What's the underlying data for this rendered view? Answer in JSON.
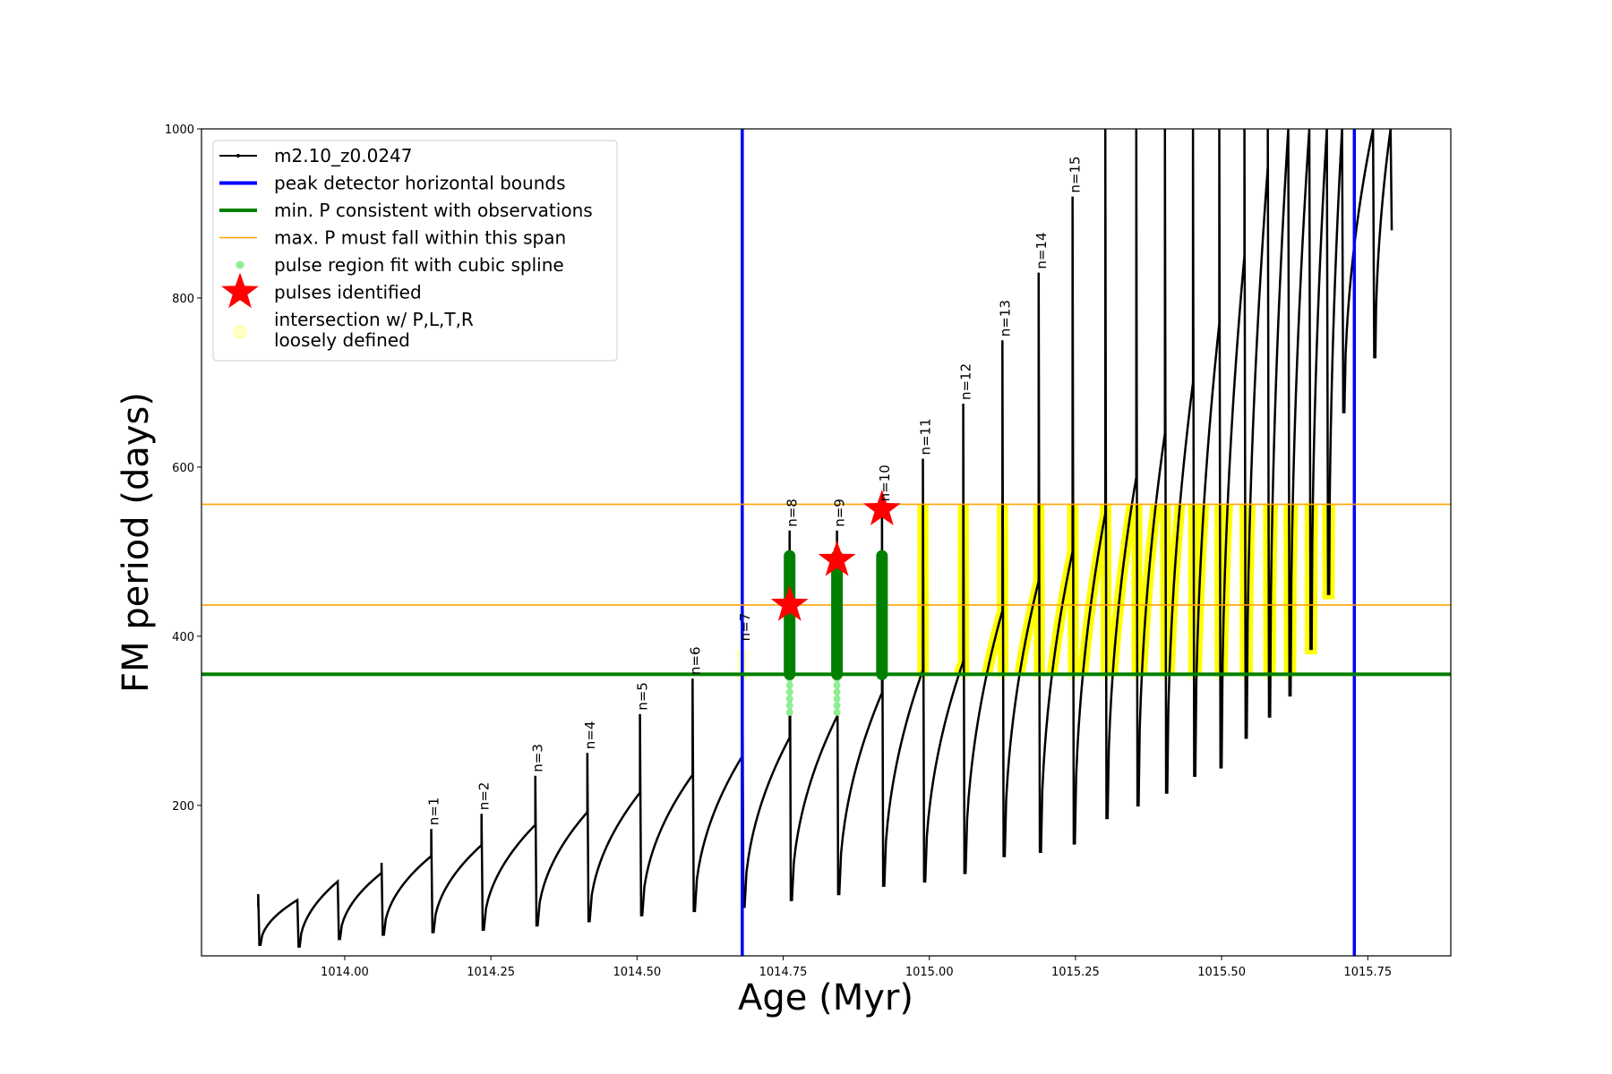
{
  "chart_data": {
    "type": "line",
    "xlabel": "Age (Myr)",
    "ylabel": "FM period (days)",
    "xlim": [
      1013.755,
      1015.892
    ],
    "ylim": [
      22,
      1000
    ],
    "xticks": [
      "1014.00",
      "1014.25",
      "1014.50",
      "1014.75",
      "1015.00",
      "1015.25",
      "1015.50",
      "1015.75"
    ],
    "yticks": [
      "200",
      "400",
      "600",
      "800",
      "1000"
    ],
    "legend_placement": "top-left",
    "legend": [
      {
        "label": "m2.10_z0.0247",
        "kind": "line-dot",
        "color": "#000000"
      },
      {
        "label": "peak detector horizontal bounds",
        "kind": "line",
        "color": "#0000ff"
      },
      {
        "label": "min. P consistent with observations",
        "kind": "line",
        "color": "#008000"
      },
      {
        "label": "max. P must fall within this span",
        "kind": "line",
        "color": "#ffa500"
      },
      {
        "label": "pulse region fit with cubic spline",
        "kind": "dot",
        "color": "#90ee90"
      },
      {
        "label": "pulses identified",
        "kind": "star",
        "color": "#ff0000"
      },
      {
        "label": "intersection w/ P,L,T,R",
        "label2": "loosely defined",
        "kind": "circle",
        "color": "#ffffc0"
      }
    ],
    "start": {
      "age": 1013.852,
      "period": 80
    },
    "pulses": [
      {
        "age": 1013.852,
        "peak": 85,
        "spike": 95,
        "min": 35,
        "label": ""
      },
      {
        "age": 1013.919,
        "peak": 88,
        "spike": 88,
        "min": 33,
        "label": ""
      },
      {
        "age": 1013.988,
        "peak": 110,
        "spike": 110,
        "min": 42,
        "label": ""
      },
      {
        "age": 1014.063,
        "peak": 120,
        "spike": 132,
        "min": 47,
        "label": ""
      },
      {
        "age": 1014.148,
        "peak": 140,
        "spike": 172,
        "min": 50,
        "label": "n=1"
      },
      {
        "age": 1014.234,
        "peak": 153,
        "spike": 190,
        "min": 53,
        "label": "n=2"
      },
      {
        "age": 1014.326,
        "peak": 177,
        "spike": 235,
        "min": 58,
        "label": "n=3"
      },
      {
        "age": 1014.415,
        "peak": 192,
        "spike": 262,
        "min": 63,
        "label": "n=4"
      },
      {
        "age": 1014.505,
        "peak": 215,
        "spike": 308,
        "min": 70,
        "label": "n=5"
      },
      {
        "age": 1014.595,
        "peak": 236,
        "spike": 350,
        "min": 75,
        "label": "n=6"
      },
      {
        "age": 1014.68,
        "peak": 258,
        "spike": 390,
        "min": 80,
        "label": "n=7"
      },
      {
        "age": 1014.761,
        "peak": 280,
        "spike": 525,
        "min": 88,
        "label": "n=8"
      },
      {
        "age": 1014.842,
        "peak": 305,
        "spike": 525,
        "min": 95,
        "label": "n=9"
      },
      {
        "age": 1014.919,
        "peak": 333,
        "spike": 555,
        "min": 105,
        "label": "n=10"
      },
      {
        "age": 1014.989,
        "peak": 360,
        "spike": 610,
        "min": 110,
        "label": "n=11"
      },
      {
        "age": 1015.058,
        "peak": 370,
        "spike": 675,
        "min": 120,
        "label": "n=12"
      },
      {
        "age": 1015.125,
        "peak": 430,
        "spike": 750,
        "min": 140,
        "label": "n=13"
      },
      {
        "age": 1015.187,
        "peak": 465,
        "spike": 830,
        "min": 145,
        "label": "n=14"
      },
      {
        "age": 1015.245,
        "peak": 500,
        "spike": 920,
        "min": 155,
        "label": "n=15"
      },
      {
        "age": 1015.301,
        "peak": 545,
        "spike": 1000,
        "min": 185,
        "label": ""
      },
      {
        "age": 1015.354,
        "peak": 588,
        "spike": 1000,
        "min": 200,
        "label": ""
      },
      {
        "age": 1015.403,
        "peak": 640,
        "spike": 1000,
        "min": 215,
        "label": ""
      },
      {
        "age": 1015.451,
        "peak": 700,
        "spike": 1000,
        "min": 235,
        "label": ""
      },
      {
        "age": 1015.496,
        "peak": 770,
        "spike": 1000,
        "min": 245,
        "label": ""
      },
      {
        "age": 1015.539,
        "peak": 850,
        "spike": 1000,
        "min": 280,
        "label": ""
      },
      {
        "age": 1015.579,
        "peak": 955,
        "spike": 1000,
        "min": 305,
        "label": ""
      },
      {
        "age": 1015.614,
        "peak": 1000,
        "spike": 1000,
        "min": 330,
        "label": ""
      },
      {
        "age": 1015.65,
        "peak": 1000,
        "spike": 1000,
        "min": 385,
        "label": ""
      },
      {
        "age": 1015.68,
        "peak": 1000,
        "spike": 1000,
        "min": 450,
        "label": ""
      },
      {
        "age": 1015.706,
        "peak": 1000,
        "spike": 1000,
        "min": 665,
        "label": ""
      },
      {
        "age": 1015.759,
        "peak": 1000,
        "spike": 1000,
        "min": 730,
        "label": ""
      },
      {
        "age": 1015.789,
        "peak": 1000,
        "spike": 1000,
        "min": 880,
        "label": ""
      }
    ],
    "peak_detector_bounds": [
      1014.68,
      1015.727
    ],
    "min_P": 355,
    "max_P_span": [
      437,
      556
    ],
    "spline_regions": [
      {
        "age": 1014.761,
        "low": 310,
        "high": 495
      },
      {
        "age": 1014.842,
        "low": 310,
        "high": 495
      },
      {
        "age": 1014.919,
        "low": 355,
        "high": 495
      }
    ],
    "pulses_identified": [
      {
        "age": 1014.761,
        "period": 437
      },
      {
        "age": 1014.842,
        "period": 490
      },
      {
        "age": 1014.919,
        "period": 550
      }
    ],
    "loose_intersection_from_age": 1014.97
  }
}
